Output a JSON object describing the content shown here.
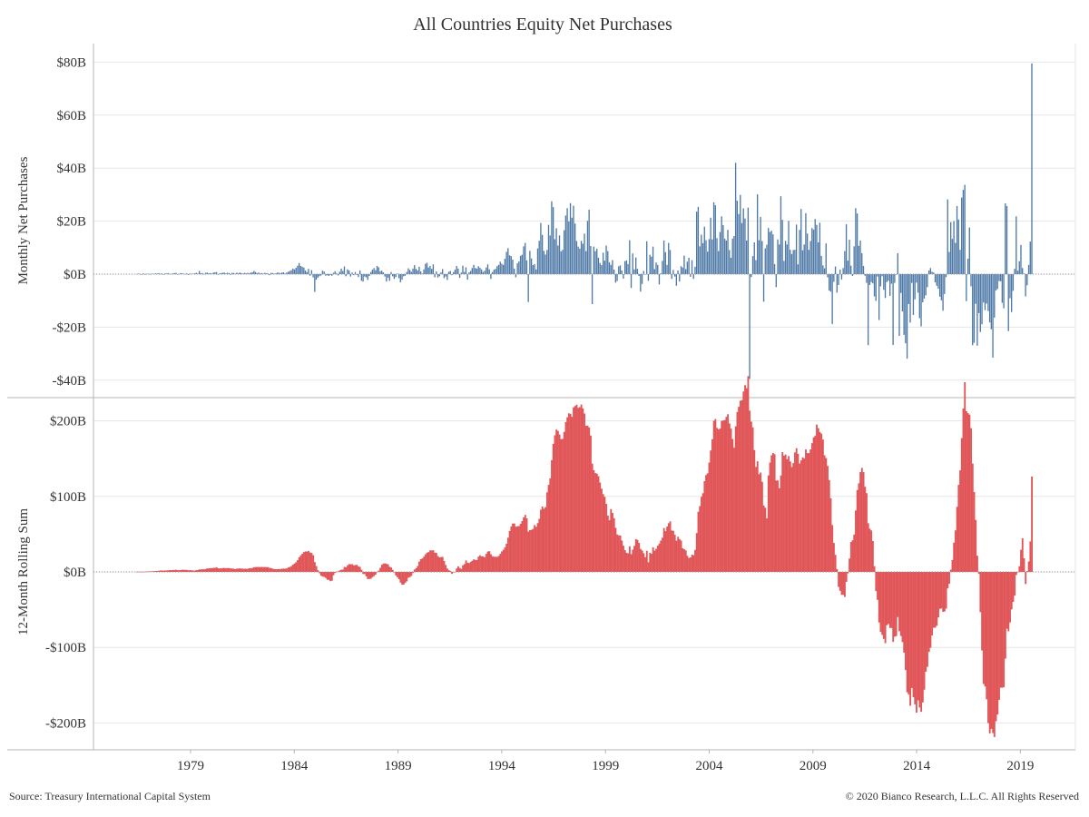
{
  "title": "All Countries Equity Net Purchases",
  "footer": {
    "source": "Source: Treasury International Capital System",
    "copyright": "© 2020 Bianco Research, L.L.C. All Rights Reserved"
  },
  "colors": {
    "monthly": "#4e79a7",
    "rolling": "#e15759",
    "grid": "#e6e6e6",
    "axis": "#b4b4b4"
  },
  "chart_data": [
    {
      "type": "bar",
      "title": "All Countries Equity Net Purchases",
      "ylabel": "Monthly Net Purchases",
      "unit": "$B",
      "ylim": [
        -40,
        80
      ],
      "yticks": [
        80,
        60,
        40,
        20,
        0,
        -20,
        -40
      ],
      "ytick_labels": [
        "$80B",
        "$60B",
        "$40B",
        "$20B",
        "$0B",
        "-$20B",
        "-$40B"
      ],
      "grid": true,
      "frequency": "monthly",
      "x_start": "1977-01",
      "x_end": "2020-03",
      "series": [
        {
          "values": [
            0.1,
            0.2,
            0,
            -0.2,
            0.3,
            0,
            0.1,
            0.2,
            0.1,
            -0.1,
            0.2,
            0.1,
            0.3,
            0.2,
            0.4,
            0.1,
            0.3,
            -0.2,
            0.3,
            0.2,
            0.4,
            0.1,
            0.1,
            0.3,
            0.4,
            0.5,
            -0.2,
            0.1,
            0.4,
            0.3,
            0.2,
            0.1,
            0.3,
            -0.3,
            0.2,
            0.1,
            0.2,
            0.3,
            0.5,
            0.2,
            1.2,
            0.3,
            0.4,
            0.1,
            0.5,
            0.6,
            0.3,
            0.4,
            0.2,
            0.6,
            0.7,
            0.8,
            -0.2,
            0.3,
            0.4,
            0.5,
            0.6,
            0.3,
            0.5,
            0.4,
            -0.3,
            0.5,
            0.4,
            0.2,
            0.6,
            0.3,
            0.6,
            0.4,
            0.2,
            0.5,
            0.3,
            0.5,
            0.3,
            0.6,
            0.7,
            1.2,
            0.8,
            0.4,
            0.6,
            0.3,
            0.4,
            0.2,
            0.5,
            0.3,
            0.3,
            -0.4,
            0.5,
            0.4,
            0.2,
            0.3,
            0.6,
            0.5,
            0.4,
            0.6,
            0.7,
            0.2,
            0.6,
            0.9,
            1.2,
            1.5,
            2.1,
            1.8,
            2.4,
            3.2,
            4.2,
            3.1,
            2.8,
            2.5,
            1.4,
            0.8,
            2.0,
            -0.6,
            1.5,
            -1.2,
            -6.7,
            -2.1,
            -1.3,
            -0.8,
            -0.5,
            1.3,
            1.0,
            -0.6,
            -0.4,
            -0.7,
            -0.3,
            -0.6,
            0.5,
            1.1,
            0.4,
            -0.5,
            0.9,
            2.1,
            1.2,
            2.9,
            -0.8,
            1.8,
            1.4,
            -0.9,
            0.6,
            -0.4,
            0.8,
            -0.3,
            -1.1,
            1.4,
            -2.5,
            -2.8,
            -0.9,
            -1.2,
            -2.2,
            -0.7,
            0.8,
            1.7,
            2.3,
            1.5,
            3.1,
            2.6,
            1.1,
            1.3,
            0.7,
            -0.9,
            -2.8,
            -1.3,
            -2.5,
            0.8,
            -0.8,
            -1.8,
            -1.1,
            0.2,
            -1.5,
            -3.1,
            -2.1,
            -0.8,
            -0.6,
            0.8,
            2.2,
            1.6,
            0.9,
            2.1,
            3.4,
            2.0,
            1.4,
            2.8,
            1.0,
            0.2,
            1.8,
            3.9,
            4.3,
            2.5,
            3.1,
            2.0,
            3.7,
            -1.2,
            1.0,
            -1.3,
            -0.8,
            0.7,
            1.9,
            -1.5,
            -0.9,
            -2.2,
            0.9,
            1.2,
            -0.4,
            0.8,
            1.7,
            3.1,
            2.1,
            -1.4,
            0.6,
            3.2,
            0.8,
            2.6,
            -2.1,
            0.7,
            1.2,
            2.3,
            3.5,
            2.3,
            2.1,
            3.0,
            2.4,
            1.8,
            0.8,
            1.3,
            2.5,
            3.7,
            1.8,
            -1.8,
            0.8,
            1.7,
            2.0,
            3.0,
            3.5,
            4.7,
            3.9,
            3.5,
            5.8,
            8.4,
            9.8,
            7.1,
            6.8,
            5.5,
            2.1,
            -1.2,
            4.1,
            4.8,
            6.9,
            7.3,
            10.5,
            11.8,
            5.2,
            -10.5,
            8.8,
            5.9,
            3.4,
            3.8,
            1.8,
            9.7,
            12.6,
            19.3,
            14.8,
            8.8,
            7.4,
            9.1,
            18.6,
            14.6,
            27.5,
            25.3,
            13.2,
            17.3,
            10.8,
            14.6,
            8.6,
            9.2,
            16.6,
            22.1,
            24.9,
            19.9,
            26.8,
            21.3,
            25.8,
            19.1,
            12.5,
            10.4,
            9.6,
            12.6,
            11.5,
            15.3,
            8.7,
            20.1,
            24.3,
            10.6,
            -11.3,
            10.4,
            8.7,
            9.6,
            6.2,
            4.2,
            3.4,
            8.1,
            5.1,
            10.8,
            8.7,
            4.5,
            3.5,
            5.3,
            1.7,
            -3.2,
            -2.6,
            3.0,
            3.3,
            1.4,
            -1.7,
            4.9,
            5.2,
            3.8,
            12.8,
            -5.2,
            7.8,
            1.8,
            6.3,
            2.0,
            -0.7,
            -6.6,
            -3.7,
            1.2,
            -0.1,
            12.4,
            -2.5,
            7.3,
            6.6,
            10.4,
            1.9,
            4.4,
            3.5,
            -3.9,
            0.3,
            5.0,
            12.7,
            8.3,
            3.5,
            11.8,
            9.1,
            -1.8,
            1.6,
            -0.9,
            -4.4,
            1.4,
            -2.8,
            3.0,
            2.5,
            7.0,
            1.9,
            4.7,
            6.2,
            -1.0,
            5.3,
            -1.8,
            2.8,
            23.6,
            25.4,
            10.5,
            14.9,
            11.7,
            17.9,
            12.8,
            8.5,
            13.2,
            21.3,
            13.1,
            27.1,
            26.0,
            13.6,
            8.7,
            15.9,
            21.8,
            18.5,
            13.4,
            12.7,
            16.7,
            9.1,
            6.2,
            13.4,
            14.4,
            42.0,
            27.7,
            22.7,
            29.9,
            19.3,
            24.8,
            21.0,
            12.7,
            25.1,
            -39.5,
            -1.1,
            6.8,
            12.0,
            5.3,
            30.1,
            12.8,
            21.6,
            12.5,
            -10.4,
            9.7,
            11.1,
            17.4,
            15.9,
            16.4,
            15.0,
            3.8,
            -4.9,
            13.1,
            11.2,
            29.4,
            20.5,
            5.0,
            12.6,
            11.2,
            20.1,
            9.2,
            7.6,
            9.1,
            9.2,
            18.7,
            3.7,
            16.7,
            24.6,
            9.0,
            11.2,
            23.0,
            15.3,
            9.2,
            12.5,
            17.4,
            16.8,
            20.8,
            18.6,
            12.0,
            19.4,
            6.9,
            3.3,
            2.2,
            11.6,
            -1.2,
            -6.2,
            -6.6,
            -18.8,
            -2.9,
            2.9,
            -7.0,
            -4.1,
            1.7,
            -2.0,
            2.3,
            8.7,
            18.8,
            5.1,
            13.0,
            3.2,
            -0.7,
            10.5,
            24.9,
            22.9,
            10.7,
            12.7,
            7.9,
            3.1,
            -0.6,
            -3.3,
            -26.8,
            -4.1,
            -3.0,
            -3.5,
            -8.4,
            -10.1,
            -0.9,
            -17.3,
            -4.6,
            -0.8,
            -5.9,
            -9.0,
            -3.0,
            -2.5,
            -8.2,
            -3.6,
            -26.7,
            -3.3,
            -0.1,
            7.9,
            -23.3,
            -7.1,
            -14.1,
            -22.9,
            -26.1,
            -31.9,
            -11.3,
            -18.3,
            -3.3,
            -15.4,
            -9.5,
            -3.2,
            -7.0,
            -16.6,
            -19.7,
            -10.6,
            -9.2,
            -8.0,
            -4.9,
            1.4,
            2.3,
            0.9,
            0.6,
            -3.1,
            -4.4,
            -5.5,
            -8.5,
            -9.9,
            -13.8,
            -7.5,
            -1.1,
            28.2,
            8.4,
            19.6,
            13.3,
            20.0,
            11.8,
            25.7,
            20.6,
            9.2,
            28.9,
            31.8,
            33.7,
            -10.2,
            5.8,
            17.6,
            -4.6,
            -26.8,
            -25.9,
            -11.2,
            -27.0,
            -14.7,
            -21.8,
            -18.9,
            -10.7,
            -13.6,
            -11.1,
            -13.9,
            -18.2,
            -20.8,
            -31.5,
            -16.4,
            -6.2,
            -5.6,
            -2.6,
            -2.7,
            -10.8,
            -12.9,
            26.7,
            25.7,
            -21.5,
            -9.1,
            -14.3,
            -6.3,
            2.0,
            21.8,
            1.3,
            4.9,
            11.0,
            2.3,
            0.2,
            -8.4,
            -4.2,
            3.5,
            12.3,
            79.5
          ]
        }
      ]
    },
    {
      "type": "area",
      "ylabel": "12-Month Rolling Sum",
      "unit": "$B",
      "ylim": [
        -200,
        200
      ],
      "yticks": [
        200,
        100,
        0,
        -100,
        -200
      ],
      "ytick_labels": [
        "$200B",
        "$100B",
        "$0B",
        "-$100B",
        "-$200B"
      ],
      "grid": true,
      "note": "12-month rolling sum of the monthly series above",
      "xticks": [
        "1979",
        "1984",
        "1989",
        "1994",
        "1999",
        "2004",
        "2009",
        "2014",
        "2019"
      ]
    }
  ]
}
